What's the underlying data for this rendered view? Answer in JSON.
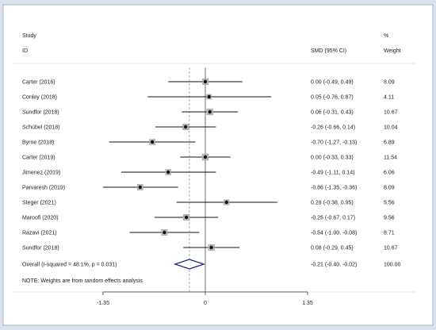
{
  "chart_data": {
    "type": "forest",
    "header": {
      "study_line1": "Study",
      "study_line2": "ID",
      "effect": "SMD (95% CI)",
      "weight_line1": "%",
      "weight_line2": "Weight"
    },
    "studies": [
      {
        "label": "Carter  (2016)",
        "smd": 0.0,
        "lo": -0.49,
        "hi": 0.49,
        "ci_text": "0.00 (-0.49, 0.49)",
        "weight": "8.09"
      },
      {
        "label": "Conley  (2018)",
        "smd": 0.05,
        "lo": -0.76,
        "hi": 0.87,
        "ci_text": "0.05 (-0.76, 0.87)",
        "weight": "4.11"
      },
      {
        "label": "Sundfor  (2018)",
        "smd": 0.06,
        "lo": -0.31,
        "hi": 0.43,
        "ci_text": "0.06 (-0.31, 0.43)",
        "weight": "10.67"
      },
      {
        "label": "Schübel  (2018)",
        "smd": -0.26,
        "lo": -0.66,
        "hi": 0.14,
        "ci_text": "-0.26 (-0.66, 0.14)",
        "weight": "10.04"
      },
      {
        "label": "Byrne  (2018)",
        "smd": -0.7,
        "lo": -1.27,
        "hi": -0.13,
        "ci_text": "-0.70 (-1.27, -0.13)",
        "weight": "6.89"
      },
      {
        "label": "Carter  (2019)",
        "smd": 0.0,
        "lo": -0.33,
        "hi": 0.33,
        "ci_text": "0.00 (-0.33, 0.33)",
        "weight": "11.54"
      },
      {
        "label": "Jimenez  (2019)",
        "smd": -0.49,
        "lo": -1.11,
        "hi": 0.14,
        "ci_text": "-0.49 (-1.11, 0.14)",
        "weight": "6.06"
      },
      {
        "label": "Parvaresh  (2019)",
        "smd": -0.86,
        "lo": -1.35,
        "hi": -0.36,
        "ci_text": "-0.86 (-1.35, -0.36)",
        "weight": "8.09"
      },
      {
        "label": "Steger  (2021)",
        "smd": 0.28,
        "lo": -0.38,
        "hi": 0.95,
        "ci_text": "0.28 (-0.38, 0.95)",
        "weight": "5.56"
      },
      {
        "label": "Maroofi  (2020)",
        "smd": -0.25,
        "lo": -0.67,
        "hi": 0.17,
        "ci_text": "-0.25 (-0.67, 0.17)",
        "weight": "9.56"
      },
      {
        "label": "Razavi  (2021)",
        "smd": -0.54,
        "lo": -1.0,
        "hi": -0.08,
        "ci_text": "-0.54 (-1.00, -0.08)",
        "weight": "8.71"
      },
      {
        "label": "Sundfor  (2018)",
        "smd": 0.08,
        "lo": -0.29,
        "hi": 0.45,
        "ci_text": "0.08 (-0.29, 0.45)",
        "weight": "10.67"
      }
    ],
    "overall": {
      "label": "Overall  (I-squared = 48.1%, p = 0.031)",
      "smd": -0.21,
      "lo": -0.4,
      "hi": -0.02,
      "ci_text": "-0.21 (-0.40, -0.02)",
      "weight": "100.00"
    },
    "note": "NOTE: Weights are from random effects analysis",
    "x_ticks": [
      -1.35,
      0,
      1.35
    ],
    "x_tick_labels": [
      "-1.35",
      "0",
      "1.35"
    ],
    "xlim": [
      -1.35,
      1.35
    ],
    "null_line": 0
  }
}
